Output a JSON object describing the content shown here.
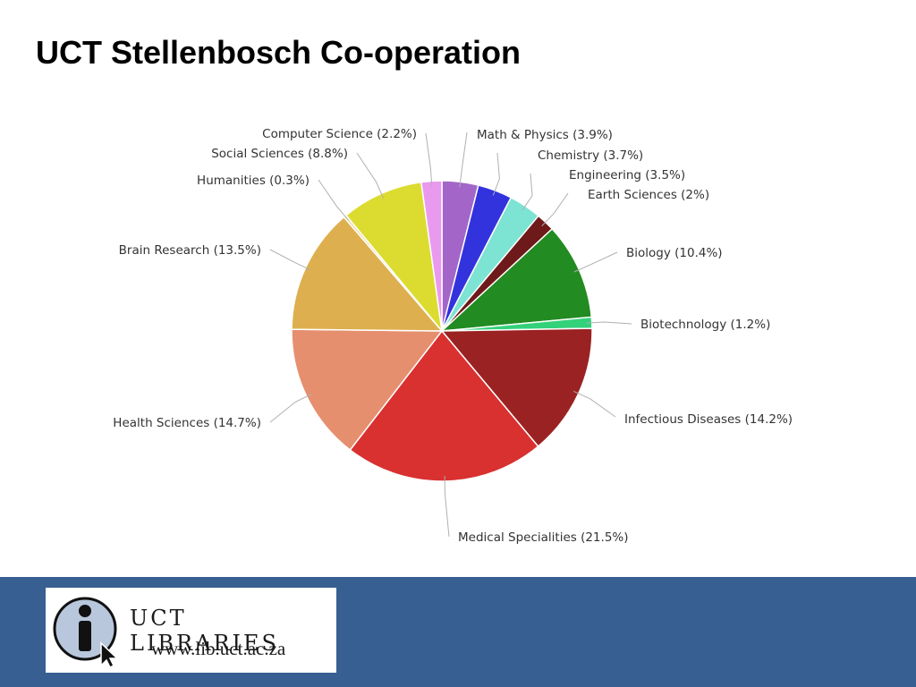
{
  "slide": {
    "title": "UCT Stellenbosch Co-operation"
  },
  "chart_data": {
    "type": "pie",
    "title": "",
    "slices": [
      {
        "label": "Math & Physics (3.9%)",
        "value": 3.9,
        "color": "#a366c8"
      },
      {
        "label": "Chemistry (3.7%)",
        "value": 3.7,
        "color": "#3333dd"
      },
      {
        "label": "Engineering (3.5%)",
        "value": 3.5,
        "color": "#7de3d2"
      },
      {
        "label": "Earth Sciences (2%)",
        "value": 2.0,
        "color": "#6e1a1a"
      },
      {
        "label": "Biology (10.4%)",
        "value": 10.4,
        "color": "#228b22"
      },
      {
        "label": "Biotechnology (1.2%)",
        "value": 1.2,
        "color": "#33d17a"
      },
      {
        "label": "Infectious Diseases (14.2%)",
        "value": 14.2,
        "color": "#9b2222"
      },
      {
        "label": "Medical Specialities (21.5%)",
        "value": 21.5,
        "color": "#d93030"
      },
      {
        "label": "Health Sciences (14.7%)",
        "value": 14.7,
        "color": "#e68f6e"
      },
      {
        "label": "Brain Research (13.5%)",
        "value": 13.5,
        "color": "#deaf4f"
      },
      {
        "label": "Humanities (0.3%)",
        "value": 0.3,
        "color": "#ead9a0"
      },
      {
        "label": "Social Sciences (8.8%)",
        "value": 8.8,
        "color": "#dcdc30"
      },
      {
        "label": "Computer Science (2.2%)",
        "value": 2.2,
        "color": "#ea9aee"
      }
    ],
    "start_angle": "12 o'clock",
    "direction": "clockwise",
    "legend": "none"
  },
  "footer": {
    "band_color": "#375f92",
    "logo": {
      "name": "UCT LIBRARIES",
      "url": "www.lib.uct.ac.za",
      "icon": "info-i-cursor-icon"
    }
  }
}
